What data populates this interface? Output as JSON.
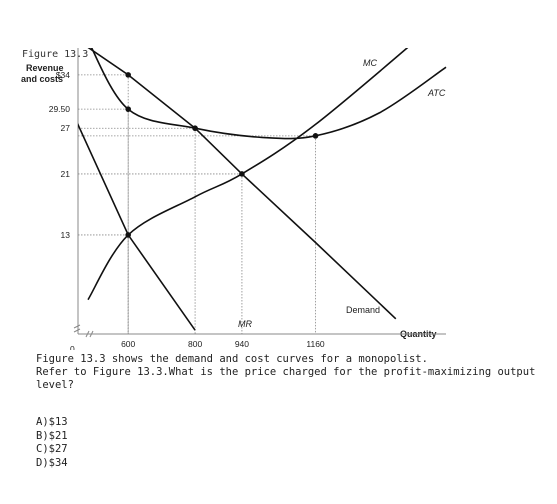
{
  "figure_label": "Figure 13.3",
  "question_text": "Figure 13.3 shows the demand and cost curves for a monopolist.\nRefer to Figure 13.3.What is the price charged for the profit-maximizing output level?",
  "options": [
    "A)$13",
    "B)$21",
    "C)$27",
    "D)$34"
  ],
  "chart_data": {
    "type": "line",
    "title": "",
    "ylabel": "Revenue and costs",
    "ylabel_lines": [
      "Revenue",
      "and costs"
    ],
    "xlabel": "Quantity",
    "origin_label": "0",
    "xlim": [
      450,
      1550
    ],
    "ylim": [
      0,
      37
    ],
    "x_ticks": [
      {
        "value": 600,
        "label": "600"
      },
      {
        "value": 800,
        "label": "800"
      },
      {
        "value": 940,
        "label": "940"
      },
      {
        "value": 1160,
        "label": "1160"
      }
    ],
    "y_ticks": [
      {
        "value": 34,
        "label": "$34"
      },
      {
        "value": 29.5,
        "label": "29.50"
      },
      {
        "value": 27,
        "label": "27"
      },
      {
        "value": 21,
        "label": "21"
      },
      {
        "value": 13,
        "label": "13"
      }
    ],
    "series": [
      {
        "name": "Demand",
        "label": "Demand",
        "italic": false,
        "points": [
          [
            400,
            40
          ],
          [
            600,
            34
          ],
          [
            800,
            27
          ],
          [
            940,
            21
          ],
          [
            1160,
            12
          ],
          [
            1400,
            2
          ]
        ]
      },
      {
        "name": "MR",
        "label": "MR",
        "italic": true,
        "points": [
          [
            320,
            40
          ],
          [
            600,
            13
          ],
          [
            800,
            0.5
          ]
        ]
      },
      {
        "name": "MC",
        "label": "MC",
        "italic": true,
        "points": [
          [
            480,
            4.5
          ],
          [
            600,
            13
          ],
          [
            800,
            18
          ],
          [
            940,
            21
          ],
          [
            1160,
            27.5
          ],
          [
            1500,
            40
          ]
        ]
      },
      {
        "name": "ATC",
        "label": "ATC",
        "italic": true,
        "points": [
          [
            480,
            38.5
          ],
          [
            600,
            29.5
          ],
          [
            800,
            27
          ],
          [
            1000,
            25.8
          ],
          [
            1160,
            26
          ],
          [
            1350,
            29
          ],
          [
            1550,
            35
          ]
        ]
      }
    ],
    "guide_points": [
      {
        "x": 600,
        "y": 34
      },
      {
        "x": 600,
        "y": 29.5
      },
      {
        "x": 800,
        "y": 27
      },
      {
        "x": 940,
        "y": 21
      },
      {
        "x": 1160,
        "y": 26
      },
      {
        "x": 600,
        "y": 13
      }
    ],
    "dots": [
      {
        "x": 600,
        "y": 34
      },
      {
        "x": 600,
        "y": 29.5
      },
      {
        "x": 800,
        "y": 27
      },
      {
        "x": 940,
        "y": 21
      },
      {
        "x": 1160,
        "y": 26
      },
      {
        "x": 600,
        "y": 13
      }
    ],
    "grid": false,
    "colors": {
      "curves": "#111111",
      "guides": "#888888"
    }
  }
}
